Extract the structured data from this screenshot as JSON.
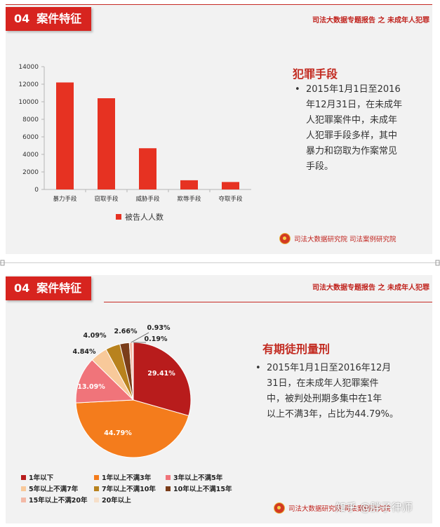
{
  "slide1": {
    "section_number": "04",
    "section_title": "案件特征",
    "report_title": "司法大数据专题报告 之 未成年人犯罪",
    "heading": "犯罪手段",
    "bullet": "2015年1月1日至2016年12月31日，在未成年人犯罪案件中，未成年人犯罪手段多样，其中暴力和窃取为作案常见手段。",
    "bullet_lines": [
      "2015年1月1日至2016",
      "年12月31日，在未成年",
      "人犯罪案件中，未成年",
      "人犯罪手段多样，其中",
      "暴力和窃取为作案常见",
      "手段。"
    ],
    "footer": "司法大数据研究院  司法案例研究院",
    "legend_label": "被告人人数"
  },
  "slide2": {
    "section_number": "04",
    "section_title": "案件特征",
    "report_title": "司法大数据专题报告 之 未成年人犯罪",
    "heading": "有期徒刑量刑",
    "bullet_lines": [
      "2015年1月1日至2016年12月",
      "31日，在未成年人犯罪案件",
      "中，被判处刑期多集中在1年",
      "以上不满3年，占比为44.79%。"
    ],
    "footer": "司法大数据研究院  司法案例研究院",
    "watermark": "知乎 @胖子律师"
  },
  "chart_data": [
    {
      "type": "bar",
      "categories": [
        "暴力手段",
        "窃取手段",
        "威胁手段",
        "欺辱手段",
        "夺取手段"
      ],
      "series": [
        {
          "name": "被告人人数",
          "values": [
            12200,
            10400,
            4700,
            1050,
            850
          ],
          "color": "#e63222"
        }
      ],
      "yticks": [
        "0",
        "2000",
        "4000",
        "6000",
        "8000",
        "10000",
        "12000",
        "14000"
      ],
      "ylim": [
        0,
        14000
      ],
      "legend": "bottom",
      "grid": false
    },
    {
      "type": "pie",
      "labels": [
        "1年以下",
        "1年以上不满3年",
        "3年以上不满5年",
        "5年以上不满7年",
        "7年以上不满10年",
        "10年以上不满15年",
        "15年以上不满20年",
        "20年以上"
      ],
      "values": [
        29.41,
        44.79,
        13.09,
        4.84,
        4.09,
        2.66,
        0.93,
        0.19
      ],
      "value_labels": [
        "29.41%",
        "44.79%",
        "13.09%",
        "4.84%",
        "4.09%",
        "2.66%",
        "0.93%",
        "0.19%"
      ],
      "colors": [
        "#b81c1c",
        "#f47c1c",
        "#f0747a",
        "#f8c99a",
        "#b8821e",
        "#7a3d1a",
        "#f3b9a6",
        "#f6dfc9"
      ],
      "legend": "bottom"
    }
  ]
}
